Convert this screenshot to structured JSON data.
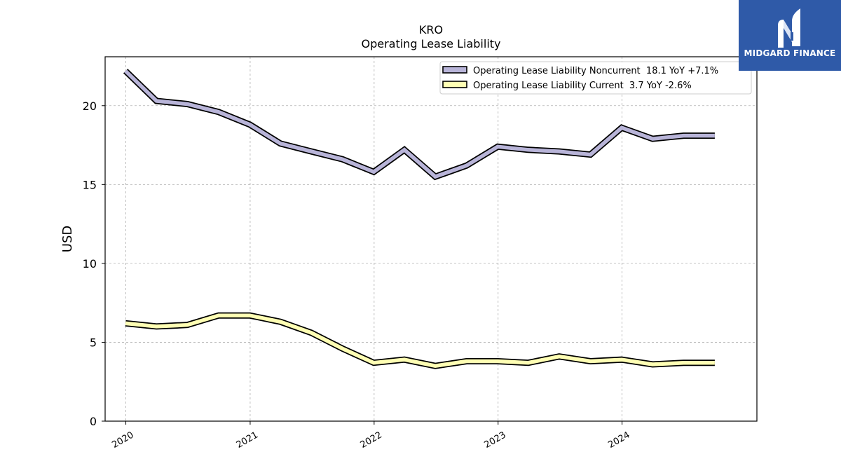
{
  "chart_data": {
    "type": "line",
    "title": "KRO",
    "subtitle": "Operating Lease Liability",
    "ylabel": "USD",
    "xlabel": "",
    "ylim": [
      0,
      23.1
    ],
    "yticks": [
      0,
      5,
      10,
      15,
      20
    ],
    "xticks": [
      "2020",
      "2021",
      "2022",
      "2023",
      "2024"
    ],
    "grid": true,
    "legend_position": "top-right",
    "x": [
      "2019-12-31",
      "2020-03-31",
      "2020-06-30",
      "2020-09-30",
      "2020-12-31",
      "2021-03-31",
      "2021-06-30",
      "2021-09-30",
      "2021-12-31",
      "2022-03-31",
      "2022-06-30",
      "2022-09-30",
      "2022-12-31",
      "2023-03-31",
      "2023-06-30",
      "2023-09-30",
      "2023-12-31",
      "2024-03-31",
      "2024-06-30",
      "2024-09-30"
    ],
    "series": [
      {
        "name": "Operating Lease Liability Noncurrent  18.1 YoY +7.1%",
        "color": "#b8b4d8",
        "values": [
          22.2,
          20.3,
          20.1,
          19.6,
          18.8,
          17.6,
          17.1,
          16.6,
          15.8,
          17.2,
          15.5,
          16.2,
          17.4,
          17.2,
          17.1,
          16.9,
          18.6,
          17.9,
          18.1,
          18.1
        ]
      },
      {
        "name": "Operating Lease Liability Current  3.7 YoY -2.6%",
        "color": "#ffffb4",
        "values": [
          6.2,
          6.0,
          6.1,
          6.7,
          6.7,
          6.3,
          5.6,
          4.6,
          3.7,
          3.9,
          3.5,
          3.8,
          3.8,
          3.7,
          4.1,
          3.8,
          3.9,
          3.6,
          3.7,
          3.7
        ]
      }
    ]
  },
  "brand": {
    "name": "MIDGARD FINANCE",
    "color": "#2f5aa8"
  }
}
